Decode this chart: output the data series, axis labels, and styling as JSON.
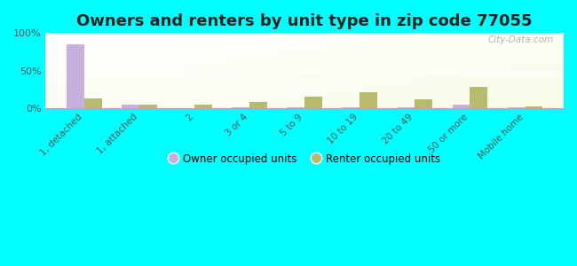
{
  "title": "Owners and renters by unit type in zip code 77055",
  "categories": [
    "1, detached",
    "1, attached",
    "2",
    "3 or 4",
    "5 to 9",
    "10 to 19",
    "20 to 49",
    "50 or more",
    "Mobile home"
  ],
  "owner_values": [
    85,
    5,
    0,
    1,
    1,
    1,
    0.5,
    4,
    1.5
  ],
  "renter_values": [
    13,
    4,
    4,
    8,
    15,
    21,
    11,
    28,
    2
  ],
  "owner_color": "#c9aee0",
  "renter_color": "#b5bc6e",
  "background_color": "#00ffff",
  "ylabel_ticks": [
    "0%",
    "50%",
    "100%"
  ],
  "ytick_values": [
    0,
    50,
    100
  ],
  "ylim": [
    0,
    100
  ],
  "legend_owner": "Owner occupied units",
  "legend_renter": "Renter occupied units",
  "bar_width": 0.32,
  "title_fontsize": 13
}
